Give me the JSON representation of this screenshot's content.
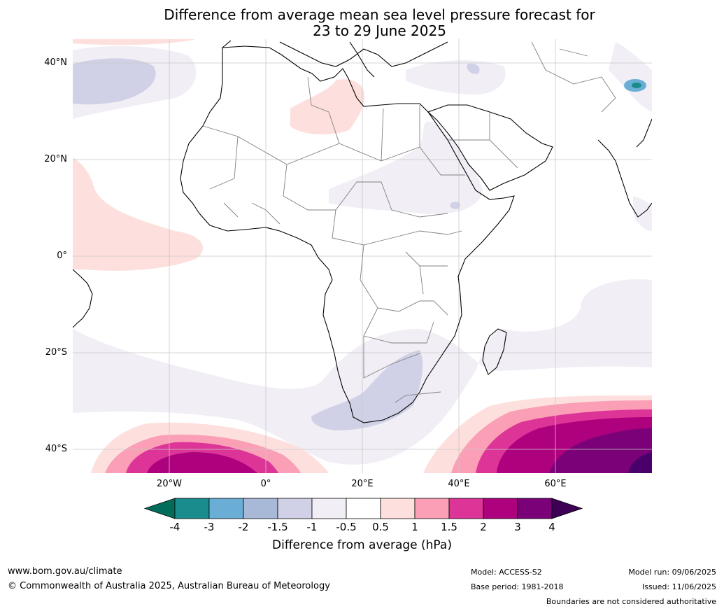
{
  "title_line1": "Difference from average mean sea level pressure forecast for",
  "title_line2": "23 to 29 June 2025",
  "lat_labels": [
    "40°N",
    "20°N",
    "0°",
    "20°S",
    "40°S"
  ],
  "lon_labels": [
    "20°W",
    "0°",
    "20°E",
    "40°E",
    "60°E"
  ],
  "colorbar": {
    "ticks": [
      "-4",
      "-3",
      "-2",
      "-1.5",
      "-1",
      "-0.5",
      "0.5",
      "1",
      "1.5",
      "2",
      "3",
      "4"
    ],
    "colors": [
      "#1a8c8e",
      "#6aaed6",
      "#a8b9d8",
      "#d0d1e6",
      "#f1eef6",
      "#ffffff",
      "#fde0dd",
      "#fa9fb5",
      "#dd3497",
      "#ae017e",
      "#7a0177",
      "#49006a"
    ],
    "under_color": "#016c59",
    "over_color": "#3d0055",
    "label": "Difference from average (hPa)"
  },
  "footer": {
    "url": "www.bom.gov.au/climate",
    "copyright": "© Commonwealth of Australia 2025, Australian Bureau of Meteorology",
    "model": "Model: ACCESS-S2",
    "base_period": "Base period: 1981-2018",
    "model_run": "Model run: 09/06/2025",
    "issued": "Issued: 11/06/2025",
    "disclaimer": "Boundaries are not considered authoritative"
  }
}
